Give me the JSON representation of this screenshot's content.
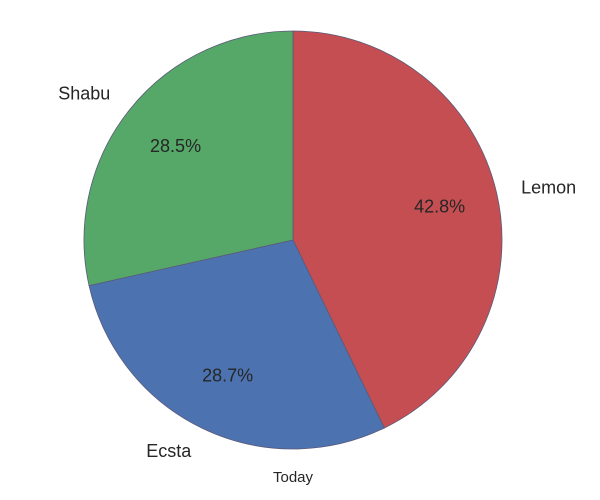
{
  "chart_data": {
    "type": "pie",
    "xlabel": "Today",
    "categories": [
      "Lemon",
      "Ecsta",
      "Shabu"
    ],
    "values": [
      42.8,
      28.7,
      28.5
    ],
    "percent_labels": [
      "42.8%",
      "28.7%",
      "28.5%"
    ],
    "colors": [
      "#c44e52",
      "#4c72b0",
      "#55a868"
    ],
    "edge_color": "#5a5a7a",
    "start_angle_deg": 90,
    "direction": "clockwise"
  }
}
